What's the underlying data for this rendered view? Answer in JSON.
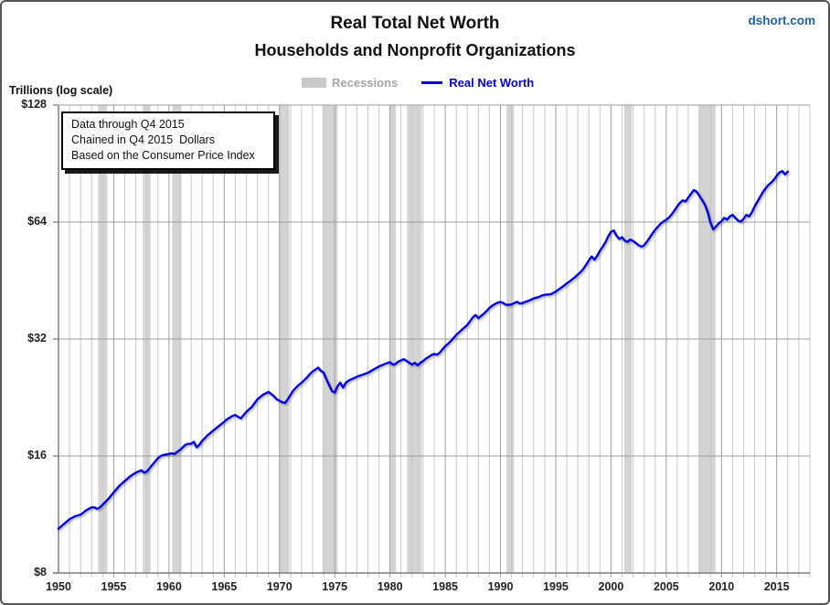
{
  "header": {
    "title": "Real Total Net Worth",
    "subtitle": "Households and Nonprofit Organizations",
    "watermark": "dshort.com"
  },
  "units_label": "Trillions (log scale)",
  "legend": {
    "recessions_label": "Recessions",
    "series_label": "Real Net Worth"
  },
  "annotation": {
    "lines": [
      "Data through Q4 2015",
      "Chained in Q4 2015  Dollars",
      "Based on the Consumer Price Index"
    ]
  },
  "colors": {
    "line": "#0000e0",
    "line_legend_text": "#0000e0",
    "recession_band": "#d4d4d4",
    "legend_swatch": "#c9c9c9",
    "legend_gray_text": "#a6a6a6",
    "watermark_blue": "#1f62ae",
    "grid_minor": "#c9c9c9",
    "grid_major": "#9c9c9c",
    "axis": "#7f7f7f"
  },
  "chart_data": {
    "type": "line",
    "title": "Real Total Net Worth — Households and Nonprofit Organizations",
    "xlabel": "",
    "ylabel": "Trillions (log scale)",
    "y_scale": "log2",
    "x_range": [
      1950,
      2018
    ],
    "y_range": [
      8,
      128
    ],
    "grid": true,
    "legend_position": "top-center",
    "y_ticks": [
      {
        "value": 8,
        "label": "$8"
      },
      {
        "value": 16,
        "label": "$16"
      },
      {
        "value": 32,
        "label": "$32"
      },
      {
        "value": 64,
        "label": "$64"
      },
      {
        "value": 128,
        "label": "$128"
      }
    ],
    "x_ticks": [
      {
        "value": 1950,
        "label": "1950"
      },
      {
        "value": 1955,
        "label": "1955"
      },
      {
        "value": 1960,
        "label": "1960"
      },
      {
        "value": 1965,
        "label": "1965"
      },
      {
        "value": 1970,
        "label": "1970"
      },
      {
        "value": 1975,
        "label": "1975"
      },
      {
        "value": 1980,
        "label": "1980"
      },
      {
        "value": 1985,
        "label": "1985"
      },
      {
        "value": 1990,
        "label": "1990"
      },
      {
        "value": 1995,
        "label": "1995"
      },
      {
        "value": 2000,
        "label": "2000"
      },
      {
        "value": 2005,
        "label": "2005"
      },
      {
        "value": 2010,
        "label": "2010"
      },
      {
        "value": 2015,
        "label": "2015"
      }
    ],
    "minor_gridline_interval_years": 1,
    "recessions": [
      [
        1953.58,
        1954.42
      ],
      [
        1957.63,
        1958.33
      ],
      [
        1960.29,
        1961.13
      ],
      [
        1969.96,
        1970.88
      ],
      [
        1973.88,
        1975.25
      ],
      [
        1980.04,
        1980.54
      ],
      [
        1981.54,
        1982.88
      ],
      [
        1990.54,
        1991.21
      ],
      [
        2001.21,
        2001.88
      ],
      [
        2007.92,
        2009.46
      ]
    ],
    "series": [
      {
        "name": "Real Net Worth",
        "units": "trillions of Q4 2015 dollars",
        "points": [
          [
            1950.0,
            10.4
          ],
          [
            1950.25,
            10.55
          ],
          [
            1950.5,
            10.7
          ],
          [
            1950.75,
            10.85
          ],
          [
            1951.0,
            11.0
          ],
          [
            1951.25,
            11.1
          ],
          [
            1951.5,
            11.2
          ],
          [
            1951.75,
            11.25
          ],
          [
            1952.0,
            11.3
          ],
          [
            1952.25,
            11.45
          ],
          [
            1952.5,
            11.6
          ],
          [
            1952.75,
            11.7
          ],
          [
            1953.0,
            11.8
          ],
          [
            1953.25,
            11.8
          ],
          [
            1953.5,
            11.7
          ],
          [
            1953.75,
            11.8
          ],
          [
            1954.0,
            12.0
          ],
          [
            1954.25,
            12.2
          ],
          [
            1954.5,
            12.4
          ],
          [
            1954.75,
            12.65
          ],
          [
            1955.0,
            12.9
          ],
          [
            1955.25,
            13.15
          ],
          [
            1955.5,
            13.4
          ],
          [
            1955.75,
            13.6
          ],
          [
            1956.0,
            13.8
          ],
          [
            1956.25,
            14.0
          ],
          [
            1956.5,
            14.2
          ],
          [
            1956.75,
            14.35
          ],
          [
            1957.0,
            14.5
          ],
          [
            1957.25,
            14.6
          ],
          [
            1957.5,
            14.7
          ],
          [
            1957.75,
            14.5
          ],
          [
            1958.0,
            14.6
          ],
          [
            1958.25,
            14.9
          ],
          [
            1958.5,
            15.2
          ],
          [
            1958.75,
            15.5
          ],
          [
            1959.0,
            15.8
          ],
          [
            1959.25,
            16.0
          ],
          [
            1959.5,
            16.1
          ],
          [
            1959.75,
            16.15
          ],
          [
            1960.0,
            16.2
          ],
          [
            1960.25,
            16.25
          ],
          [
            1960.5,
            16.2
          ],
          [
            1960.75,
            16.4
          ],
          [
            1961.0,
            16.6
          ],
          [
            1961.25,
            16.85
          ],
          [
            1961.5,
            17.1
          ],
          [
            1961.75,
            17.2
          ],
          [
            1962.0,
            17.2
          ],
          [
            1962.25,
            17.4
          ],
          [
            1962.5,
            16.85
          ],
          [
            1962.75,
            17.1
          ],
          [
            1963.0,
            17.5
          ],
          [
            1963.25,
            17.8
          ],
          [
            1963.5,
            18.1
          ],
          [
            1963.75,
            18.35
          ],
          [
            1964.0,
            18.6
          ],
          [
            1964.25,
            18.85
          ],
          [
            1964.5,
            19.1
          ],
          [
            1964.75,
            19.35
          ],
          [
            1965.0,
            19.6
          ],
          [
            1965.25,
            19.9
          ],
          [
            1965.5,
            20.1
          ],
          [
            1965.75,
            20.3
          ],
          [
            1966.0,
            20.4
          ],
          [
            1966.25,
            20.2
          ],
          [
            1966.5,
            20.0
          ],
          [
            1966.75,
            20.4
          ],
          [
            1967.0,
            20.8
          ],
          [
            1967.25,
            21.1
          ],
          [
            1967.5,
            21.4
          ],
          [
            1967.75,
            21.9
          ],
          [
            1968.0,
            22.4
          ],
          [
            1968.25,
            22.7
          ],
          [
            1968.5,
            23.0
          ],
          [
            1968.75,
            23.2
          ],
          [
            1969.0,
            23.4
          ],
          [
            1969.25,
            23.1
          ],
          [
            1969.5,
            22.8
          ],
          [
            1969.75,
            22.4
          ],
          [
            1970.0,
            22.2
          ],
          [
            1970.25,
            22.0
          ],
          [
            1970.5,
            21.9
          ],
          [
            1970.75,
            22.4
          ],
          [
            1971.0,
            23.0
          ],
          [
            1971.25,
            23.6
          ],
          [
            1971.5,
            24.0
          ],
          [
            1971.75,
            24.4
          ],
          [
            1972.0,
            24.7
          ],
          [
            1972.25,
            25.1
          ],
          [
            1972.5,
            25.5
          ],
          [
            1972.75,
            26.0
          ],
          [
            1973.0,
            26.4
          ],
          [
            1973.25,
            26.7
          ],
          [
            1973.5,
            27.0
          ],
          [
            1973.75,
            26.5
          ],
          [
            1974.0,
            26.2
          ],
          [
            1974.25,
            25.2
          ],
          [
            1974.5,
            24.3
          ],
          [
            1974.75,
            23.5
          ],
          [
            1975.0,
            23.3
          ],
          [
            1975.25,
            24.2
          ],
          [
            1975.5,
            24.7
          ],
          [
            1975.75,
            24.0
          ],
          [
            1976.0,
            24.7
          ],
          [
            1976.25,
            25.0
          ],
          [
            1976.5,
            25.2
          ],
          [
            1976.75,
            25.4
          ],
          [
            1977.0,
            25.6
          ],
          [
            1977.25,
            25.75
          ],
          [
            1977.5,
            25.9
          ],
          [
            1977.75,
            26.05
          ],
          [
            1978.0,
            26.2
          ],
          [
            1978.25,
            26.45
          ],
          [
            1978.5,
            26.7
          ],
          [
            1978.75,
            26.95
          ],
          [
            1979.0,
            27.2
          ],
          [
            1979.25,
            27.4
          ],
          [
            1979.5,
            27.6
          ],
          [
            1979.75,
            27.75
          ],
          [
            1980.0,
            27.9
          ],
          [
            1980.25,
            27.5
          ],
          [
            1980.5,
            27.6
          ],
          [
            1980.75,
            28.0
          ],
          [
            1981.0,
            28.2
          ],
          [
            1981.25,
            28.4
          ],
          [
            1981.5,
            28.1
          ],
          [
            1981.75,
            27.8
          ],
          [
            1982.0,
            27.5
          ],
          [
            1982.25,
            27.8
          ],
          [
            1982.5,
            27.4
          ],
          [
            1982.75,
            27.8
          ],
          [
            1983.0,
            28.1
          ],
          [
            1983.25,
            28.5
          ],
          [
            1983.5,
            28.8
          ],
          [
            1983.75,
            29.1
          ],
          [
            1984.0,
            29.3
          ],
          [
            1984.25,
            29.15
          ],
          [
            1984.5,
            29.5
          ],
          [
            1984.75,
            30.1
          ],
          [
            1985.0,
            30.7
          ],
          [
            1985.25,
            31.1
          ],
          [
            1985.5,
            31.6
          ],
          [
            1985.75,
            32.2
          ],
          [
            1986.0,
            32.8
          ],
          [
            1986.25,
            33.3
          ],
          [
            1986.5,
            33.8
          ],
          [
            1986.75,
            34.3
          ],
          [
            1987.0,
            34.8
          ],
          [
            1987.25,
            35.6
          ],
          [
            1987.5,
            36.4
          ],
          [
            1987.75,
            36.9
          ],
          [
            1988.0,
            36.2
          ],
          [
            1988.25,
            36.7
          ],
          [
            1988.5,
            37.2
          ],
          [
            1988.75,
            37.8
          ],
          [
            1989.0,
            38.5
          ],
          [
            1989.25,
            39.0
          ],
          [
            1989.5,
            39.4
          ],
          [
            1989.75,
            39.7
          ],
          [
            1990.0,
            39.9
          ],
          [
            1990.25,
            39.6
          ],
          [
            1990.5,
            39.2
          ],
          [
            1990.75,
            39.2
          ],
          [
            1991.0,
            39.3
          ],
          [
            1991.25,
            39.6
          ],
          [
            1991.5,
            39.9
          ],
          [
            1991.75,
            39.5
          ],
          [
            1992.0,
            39.6
          ],
          [
            1992.25,
            39.9
          ],
          [
            1992.5,
            40.1
          ],
          [
            1992.75,
            40.4
          ],
          [
            1993.0,
            40.7
          ],
          [
            1993.25,
            40.9
          ],
          [
            1993.5,
            41.1
          ],
          [
            1993.75,
            41.4
          ],
          [
            1994.0,
            41.6
          ],
          [
            1994.25,
            41.65
          ],
          [
            1994.5,
            41.7
          ],
          [
            1994.75,
            42.0
          ],
          [
            1995.0,
            42.4
          ],
          [
            1995.25,
            42.9
          ],
          [
            1995.5,
            43.4
          ],
          [
            1995.75,
            43.9
          ],
          [
            1996.0,
            44.5
          ],
          [
            1996.25,
            45.0
          ],
          [
            1996.5,
            45.6
          ],
          [
            1996.75,
            46.2
          ],
          [
            1997.0,
            46.9
          ],
          [
            1997.25,
            47.6
          ],
          [
            1997.5,
            48.5
          ],
          [
            1997.75,
            49.7
          ],
          [
            1998.0,
            51.0
          ],
          [
            1998.25,
            52.2
          ],
          [
            1998.5,
            51.2
          ],
          [
            1998.75,
            52.4
          ],
          [
            1999.0,
            54.0
          ],
          [
            1999.25,
            55.3
          ],
          [
            1999.5,
            56.8
          ],
          [
            1999.75,
            58.8
          ],
          [
            2000.0,
            60.4
          ],
          [
            2000.25,
            60.9
          ],
          [
            2000.5,
            59.0
          ],
          [
            2000.75,
            57.9
          ],
          [
            2001.0,
            58.5
          ],
          [
            2001.25,
            57.3
          ],
          [
            2001.5,
            56.9
          ],
          [
            2001.75,
            57.7
          ],
          [
            2002.0,
            57.2
          ],
          [
            2002.25,
            56.5
          ],
          [
            2002.5,
            55.8
          ],
          [
            2002.75,
            55.3
          ],
          [
            2003.0,
            55.8
          ],
          [
            2003.25,
            57.0
          ],
          [
            2003.5,
            58.3
          ],
          [
            2003.75,
            59.8
          ],
          [
            2004.0,
            61.2
          ],
          [
            2004.25,
            62.3
          ],
          [
            2004.5,
            63.4
          ],
          [
            2004.75,
            64.2
          ],
          [
            2005.0,
            64.9
          ],
          [
            2005.25,
            65.8
          ],
          [
            2005.5,
            67.0
          ],
          [
            2005.75,
            68.6
          ],
          [
            2006.0,
            70.3
          ],
          [
            2006.25,
            71.8
          ],
          [
            2006.5,
            72.8
          ],
          [
            2006.75,
            72.3
          ],
          [
            2007.0,
            74.0
          ],
          [
            2007.25,
            75.8
          ],
          [
            2007.5,
            77.3
          ],
          [
            2007.75,
            76.6
          ],
          [
            2008.0,
            74.8
          ],
          [
            2008.25,
            72.9
          ],
          [
            2008.5,
            70.9
          ],
          [
            2008.75,
            67.9
          ],
          [
            2009.0,
            63.8
          ],
          [
            2009.25,
            61.3
          ],
          [
            2009.5,
            62.3
          ],
          [
            2009.75,
            63.5
          ],
          [
            2010.0,
            64.3
          ],
          [
            2010.25,
            65.6
          ],
          [
            2010.5,
            64.9
          ],
          [
            2010.75,
            66.2
          ],
          [
            2011.0,
            66.8
          ],
          [
            2011.25,
            65.6
          ],
          [
            2011.5,
            64.6
          ],
          [
            2011.75,
            64.1
          ],
          [
            2012.0,
            65.3
          ],
          [
            2012.25,
            66.8
          ],
          [
            2012.5,
            66.2
          ],
          [
            2012.75,
            67.8
          ],
          [
            2013.0,
            70.2
          ],
          [
            2013.25,
            72.3
          ],
          [
            2013.5,
            74.3
          ],
          [
            2013.75,
            76.5
          ],
          [
            2014.0,
            78.2
          ],
          [
            2014.25,
            79.8
          ],
          [
            2014.5,
            80.9
          ],
          [
            2014.75,
            82.3
          ],
          [
            2015.0,
            84.2
          ],
          [
            2015.25,
            85.9
          ],
          [
            2015.5,
            86.6
          ],
          [
            2015.75,
            84.9
          ],
          [
            2016.0,
            86.3
          ]
        ]
      }
    ]
  }
}
